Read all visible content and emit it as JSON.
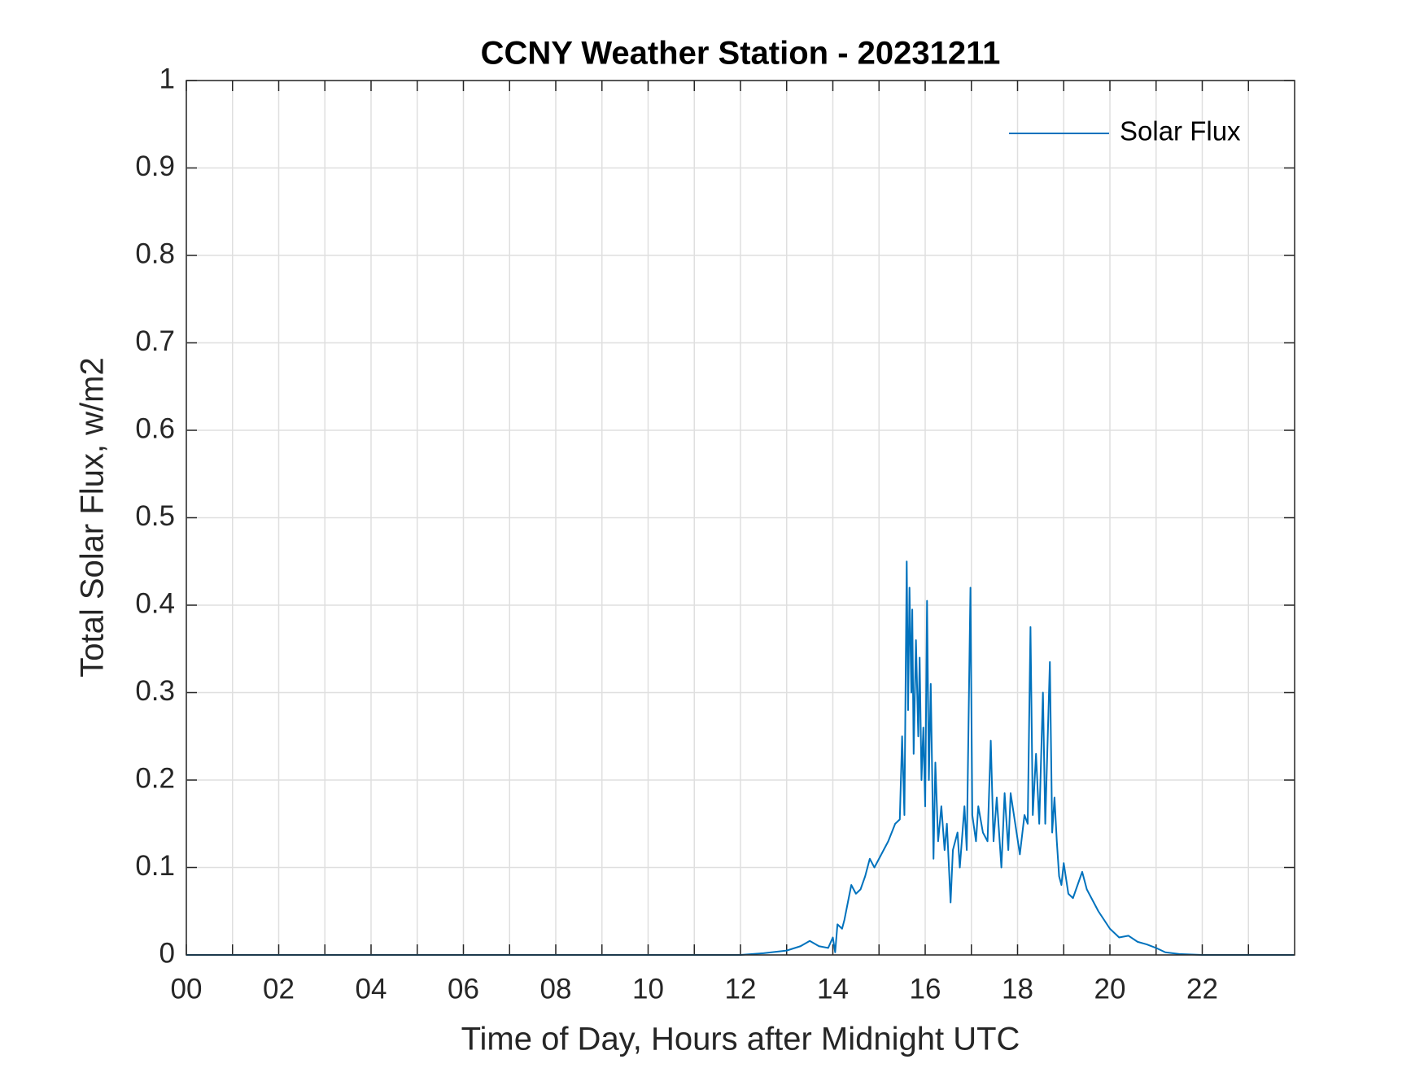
{
  "chart_data": {
    "type": "line",
    "title": "CCNY Weather Station - 20231211",
    "x_label": "Time of Day, Hours after Midnight UTC",
    "y_label": "Total Solar Flux, w/m2",
    "xlim": [
      0,
      24
    ],
    "ylim": [
      0,
      1
    ],
    "xticks": [
      {
        "value": 0,
        "label": "00"
      },
      {
        "value": 2,
        "label": "02"
      },
      {
        "value": 4,
        "label": "04"
      },
      {
        "value": 6,
        "label": "06"
      },
      {
        "value": 8,
        "label": "08"
      },
      {
        "value": 10,
        "label": "10"
      },
      12,
      14,
      16,
      18,
      20,
      22
    ],
    "xminor_ticks": [
      1,
      3,
      5,
      7,
      9,
      11,
      13,
      15,
      17,
      19,
      21,
      23
    ],
    "yticks": [
      0,
      0.1,
      0.2,
      0.3,
      0.4,
      0.5,
      0.6,
      0.7,
      0.8,
      0.9,
      1
    ],
    "grid": true,
    "legend": "upper right",
    "x": [
      0,
      12.0,
      12.5,
      13.0,
      13.3,
      13.5,
      13.7,
      13.9,
      14.0,
      14.05,
      14.1,
      14.2,
      14.25,
      14.4,
      14.5,
      14.6,
      14.7,
      14.8,
      14.9,
      15.0,
      15.1,
      15.2,
      15.35,
      15.45,
      15.5,
      15.55,
      15.6,
      15.63,
      15.66,
      15.7,
      15.72,
      15.75,
      15.8,
      15.85,
      15.88,
      15.92,
      15.96,
      16.0,
      16.04,
      16.08,
      16.12,
      16.18,
      16.22,
      16.28,
      16.35,
      16.42,
      16.47,
      16.55,
      16.6,
      16.7,
      16.75,
      16.85,
      16.9,
      16.98,
      17.02,
      17.1,
      17.15,
      17.25,
      17.35,
      17.42,
      17.48,
      17.55,
      17.65,
      17.72,
      17.8,
      17.85,
      17.95,
      18.05,
      18.15,
      18.22,
      18.28,
      18.33,
      18.4,
      18.47,
      18.55,
      18.6,
      18.7,
      18.75,
      18.8,
      18.85,
      18.9,
      18.95,
      19.0,
      19.1,
      19.2,
      19.3,
      19.4,
      19.5,
      19.6,
      19.75,
      20.0,
      20.2,
      20.4,
      20.6,
      20.8,
      21.0,
      21.2,
      21.5,
      22.0,
      23.98
    ],
    "series": [
      {
        "name": "Solar Flux",
        "color": "#0072bd",
        "values": [
          0,
          0,
          0.002,
          0.005,
          0.01,
          0.016,
          0.01,
          0.008,
          0.02,
          0.003,
          0.035,
          0.03,
          0.04,
          0.08,
          0.07,
          0.075,
          0.09,
          0.11,
          0.1,
          0.11,
          0.12,
          0.13,
          0.15,
          0.155,
          0.25,
          0.16,
          0.45,
          0.28,
          0.42,
          0.3,
          0.395,
          0.23,
          0.36,
          0.25,
          0.34,
          0.2,
          0.26,
          0.17,
          0.405,
          0.2,
          0.31,
          0.11,
          0.22,
          0.13,
          0.17,
          0.12,
          0.15,
          0.06,
          0.12,
          0.14,
          0.1,
          0.17,
          0.12,
          0.42,
          0.16,
          0.13,
          0.17,
          0.14,
          0.13,
          0.245,
          0.13,
          0.18,
          0.1,
          0.185,
          0.12,
          0.185,
          0.15,
          0.115,
          0.16,
          0.15,
          0.375,
          0.16,
          0.23,
          0.15,
          0.3,
          0.15,
          0.335,
          0.14,
          0.18,
          0.13,
          0.09,
          0.08,
          0.105,
          0.07,
          0.065,
          0.08,
          0.095,
          0.075,
          0.065,
          0.05,
          0.03,
          0.02,
          0.022,
          0.015,
          0.012,
          0.008,
          0.003,
          0.001,
          0,
          0
        ]
      }
    ]
  }
}
